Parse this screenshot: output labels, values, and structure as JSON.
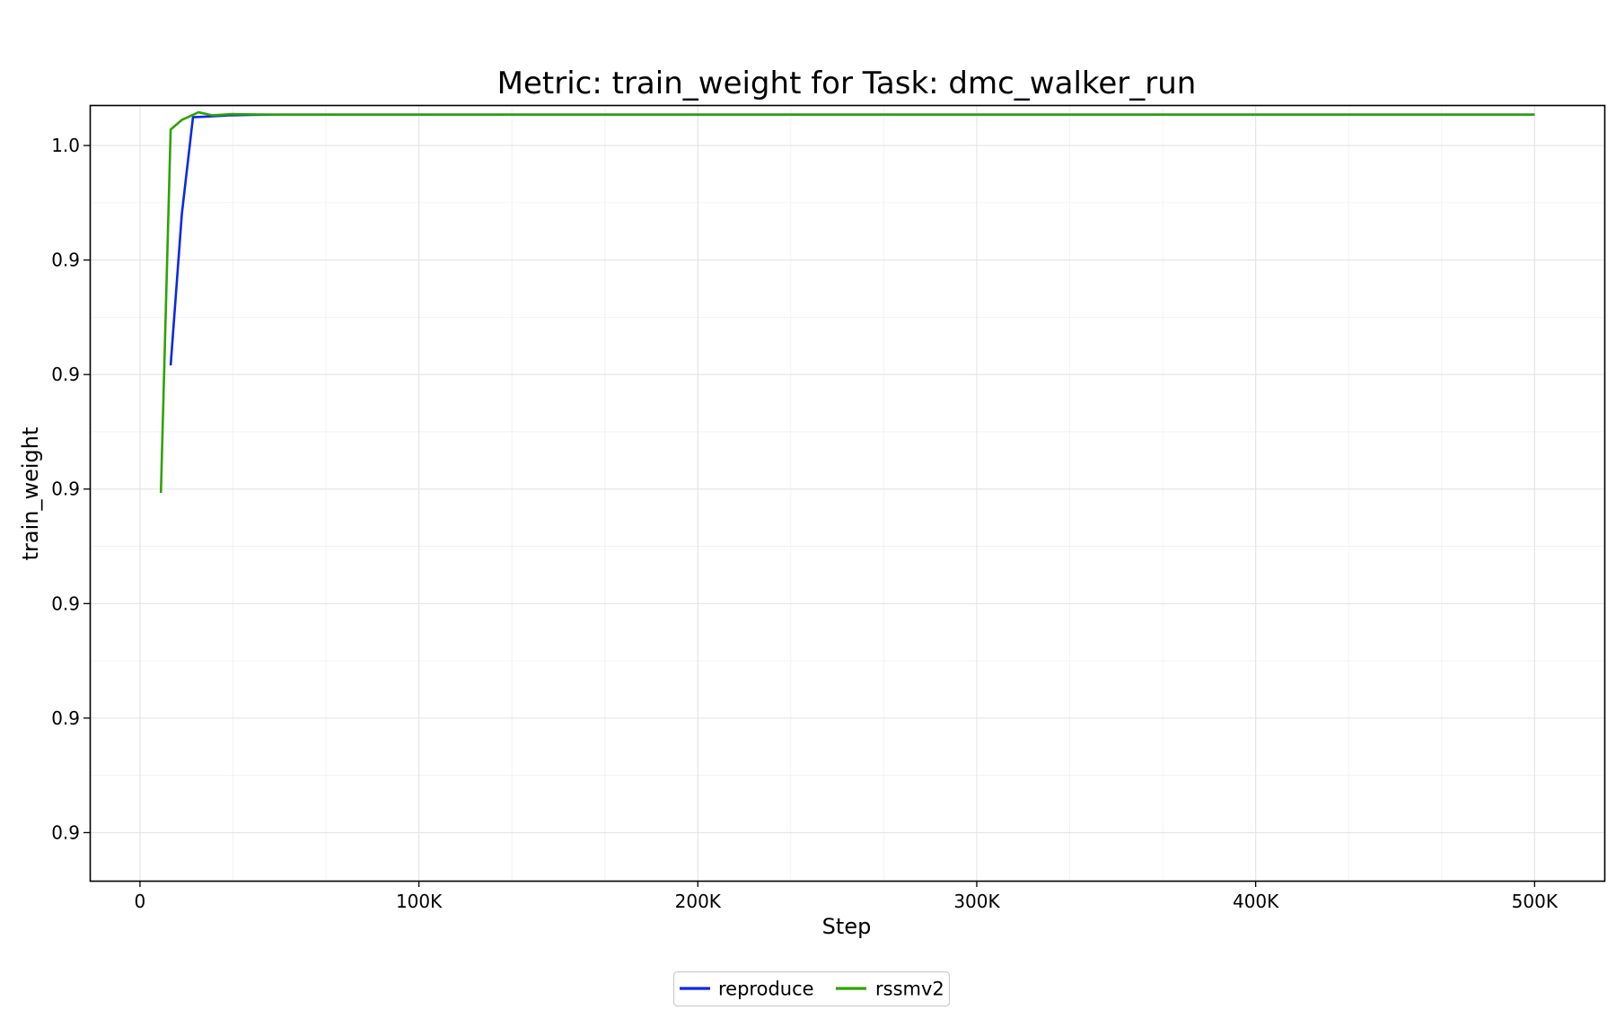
{
  "chart_data": {
    "type": "line",
    "title": "Metric: train_weight for Task: dmc_walker_run",
    "xlabel": "Step",
    "ylabel": "train_weight",
    "xlim": [
      -18000,
      525000
    ],
    "ylim": [
      0.8962,
      0.9978
    ],
    "x_ticks": [
      {
        "value": 0,
        "label": "0"
      },
      {
        "value": 100000,
        "label": "100K"
      },
      {
        "value": 200000,
        "label": "200K"
      },
      {
        "value": 300000,
        "label": "300K"
      },
      {
        "value": 400000,
        "label": "400K"
      },
      {
        "value": 500000,
        "label": "500K"
      }
    ],
    "y_ticks": [
      {
        "value": 0.9025,
        "label": "0.9"
      },
      {
        "value": 0.9175,
        "label": "0.9"
      },
      {
        "value": 0.9325,
        "label": "0.9"
      },
      {
        "value": 0.9475,
        "label": "0.9"
      },
      {
        "value": 0.9625,
        "label": "0.9"
      },
      {
        "value": 0.9775,
        "label": "0.9"
      },
      {
        "value": 0.9925,
        "label": "1.0"
      },
      {
        "value": 1.0075,
        "label": "1.0"
      }
    ],
    "grid": true,
    "legend_position": "bottom-center",
    "series": [
      {
        "name": "reproduce",
        "color": "#0a28e8",
        "x": [
          11000,
          15000,
          19000,
          25000,
          32000,
          40000,
          50000,
          70000,
          100000,
          200000,
          300000,
          400000,
          500000
        ],
        "y": [
          0.9637,
          0.9835,
          0.9962,
          0.9963,
          0.99645,
          0.99652,
          0.99655,
          0.99655,
          0.99655,
          0.99655,
          0.99655,
          0.99655,
          0.99655
        ]
      },
      {
        "name": "rssmv2",
        "color": "#2ca400",
        "x": [
          7500,
          11000,
          15000,
          21000,
          26000,
          33000,
          40000,
          50000,
          100000,
          200000,
          300000,
          400000,
          500000
        ],
        "y": [
          0.947,
          0.9946,
          0.99585,
          0.99685,
          0.99645,
          0.99662,
          0.99658,
          0.99655,
          0.99655,
          0.99655,
          0.99655,
          0.99655,
          0.99655
        ]
      }
    ]
  }
}
